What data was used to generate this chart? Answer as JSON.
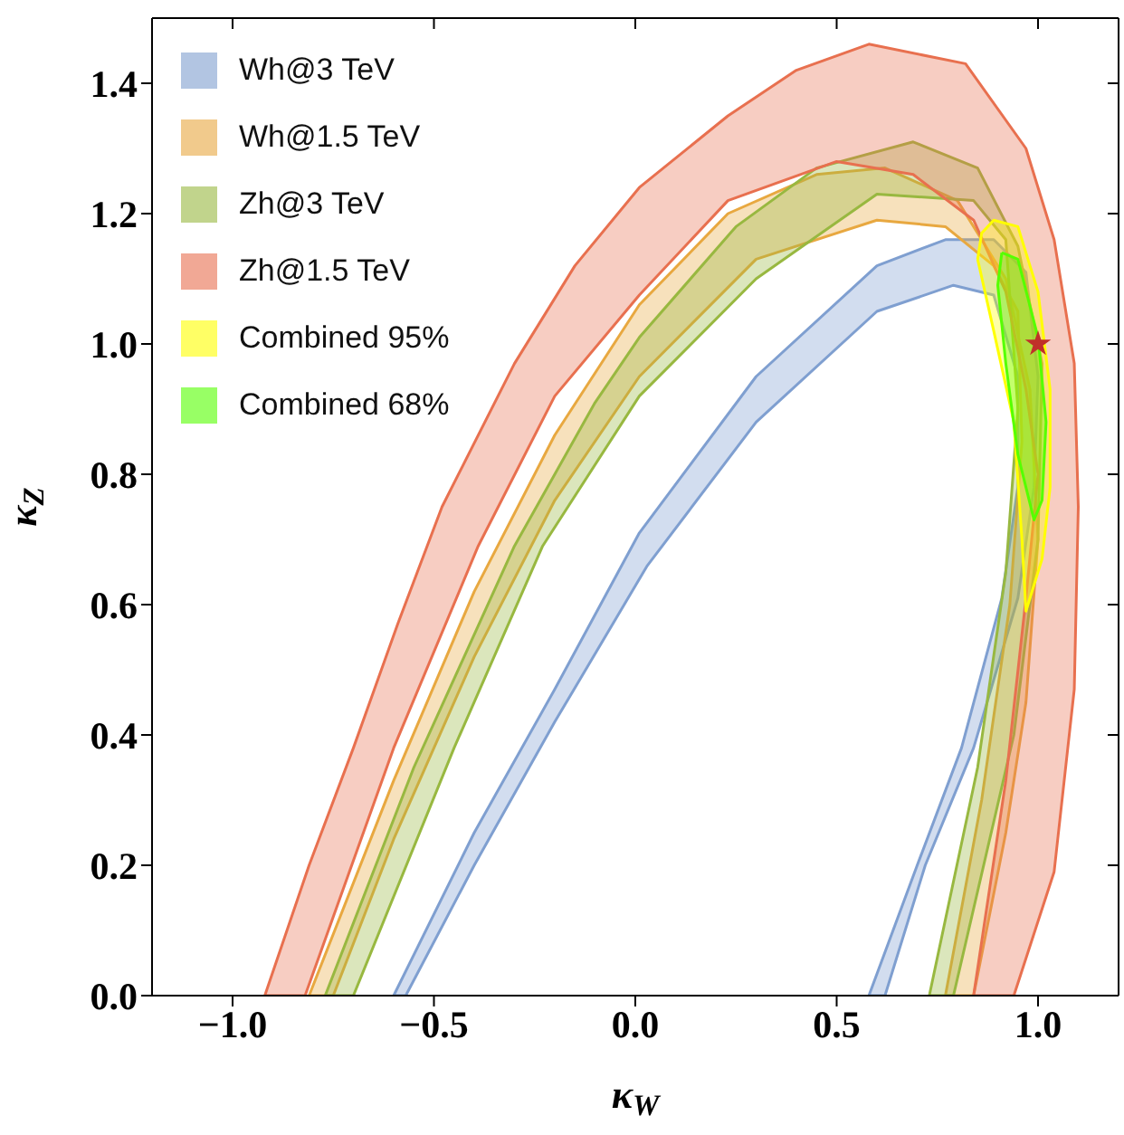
{
  "chart_data": {
    "type": "area",
    "xlabel": "κ$_{W}$",
    "ylabel": "κ$_{Z}$",
    "xlim": [
      -1.2,
      1.2
    ],
    "ylim": [
      0,
      1.5
    ],
    "xticks": [
      {
        "value": -1,
        "label": "−1.0"
      },
      {
        "value": -0.5,
        "label": "−0.5"
      },
      {
        "value": 0,
        "label": "0.0"
      },
      {
        "value": 0.5,
        "label": "0.5"
      },
      {
        "value": 1,
        "label": "1.0"
      }
    ],
    "yticks": [
      {
        "value": 0,
        "label": "0.0"
      },
      {
        "value": 0.2,
        "label": "0.2"
      },
      {
        "value": 0.4,
        "label": "0.4"
      },
      {
        "value": 0.6,
        "label": "0.6"
      },
      {
        "value": 0.8,
        "label": "0.8"
      },
      {
        "value": 1,
        "label": "1.0"
      },
      {
        "value": 1.2,
        "label": "1.2"
      },
      {
        "value": 1.4,
        "label": "1.4"
      }
    ],
    "legend": "top left",
    "series": [
      {
        "name": "Wh@3 TeV",
        "color": "#7f9fd0",
        "x": [
          -0.6,
          -0.4,
          -0.2,
          0.01,
          0.3,
          0.6,
          0.77,
          0.89,
          0.97,
          1.0,
          0.99,
          0.95,
          0.84,
          0.72,
          0.62,
          0.58,
          0.7,
          0.81,
          0.91,
          0.95,
          0.95,
          0.89,
          0.79,
          0.6,
          0.3,
          0.03,
          -0.2,
          -0.4,
          -0.57,
          -0.6
        ],
        "values": [
          0,
          0.25,
          0.47,
          0.71,
          0.95,
          1.12,
          1.16,
          1.16,
          1.11,
          0.95,
          0.78,
          0.61,
          0.38,
          0.2,
          0,
          0,
          0.2,
          0.38,
          0.61,
          0.78,
          0.95,
          1.075,
          1.09,
          1.05,
          0.88,
          0.66,
          0.42,
          0.2,
          0,
          0
        ]
      },
      {
        "name": "Wh@1.5 TeV",
        "color": "#e8a840",
        "x": [
          -0.81,
          -0.6,
          -0.4,
          -0.2,
          0.01,
          0.23,
          0.45,
          0.62,
          0.8,
          0.92,
          0.98,
          1.0,
          0.97,
          0.92,
          0.84,
          0.77,
          0.86,
          0.93,
          0.96,
          0.95,
          0.89,
          0.77,
          0.6,
          0.3,
          0.01,
          -0.2,
          -0.4,
          -0.6,
          -0.75,
          -0.81
        ],
        "values": [
          0,
          0.33,
          0.62,
          0.86,
          1.06,
          1.2,
          1.26,
          1.27,
          1.22,
          1.1,
          0.93,
          0.7,
          0.45,
          0.25,
          0,
          0,
          0.3,
          0.6,
          0.85,
          1.05,
          1.12,
          1.18,
          1.19,
          1.13,
          0.95,
          0.76,
          0.52,
          0.24,
          0,
          0
        ]
      },
      {
        "name": "Zh@3 TeV",
        "color": "#98b840",
        "x": [
          -0.77,
          -0.55,
          -0.3,
          -0.1,
          0.01,
          0.25,
          0.45,
          0.69,
          0.85,
          0.95,
          1.01,
          1.0,
          0.94,
          0.79,
          0.73,
          0.85,
          0.92,
          0.95,
          0.92,
          0.84,
          0.6,
          0.3,
          0.01,
          -0.23,
          -0.45,
          -0.7,
          -0.77
        ],
        "values": [
          0,
          0.35,
          0.69,
          0.91,
          1.01,
          1.18,
          1.27,
          1.31,
          1.27,
          1.15,
          0.97,
          0.7,
          0.4,
          0,
          0,
          0.35,
          0.65,
          0.9,
          1.16,
          1.22,
          1.23,
          1.1,
          0.92,
          0.69,
          0.38,
          0,
          0
        ]
      },
      {
        "name": "Zh@1.5 TeV",
        "color": "#e8704f",
        "x": [
          -0.92,
          -0.81,
          -0.7,
          -0.59,
          -0.48,
          -0.3,
          -0.15,
          0.01,
          0.23,
          0.4,
          0.58,
          0.82,
          0.97,
          1.04,
          1.09,
          1.1,
          1.09,
          1.04,
          0.94,
          0.84,
          0.92,
          0.97,
          1.0,
          0.97,
          0.92,
          0.84,
          0.69,
          0.5,
          0.23,
          0.01,
          -0.2,
          -0.39,
          -0.6,
          -0.82,
          -0.92
        ],
        "values": [
          0,
          0.2,
          0.38,
          0.57,
          0.75,
          0.97,
          1.12,
          1.24,
          1.35,
          1.42,
          1.46,
          1.43,
          1.3,
          1.16,
          0.97,
          0.75,
          0.47,
          0.19,
          0,
          0,
          0.33,
          0.61,
          0.8,
          0.93,
          1.08,
          1.19,
          1.26,
          1.28,
          1.22,
          1.075,
          0.92,
          0.69,
          0.38,
          0,
          0
        ]
      },
      {
        "name": "Combined 95%",
        "color": "#ffff00",
        "x": [
          0.85,
          0.86,
          0.89,
          0.95,
          1.0,
          1.03,
          1.03,
          1.01,
          0.97,
          0.96,
          0.94,
          0.89,
          0.85
        ],
        "values": [
          1.13,
          1.17,
          1.19,
          1.18,
          1.08,
          0.93,
          0.78,
          0.67,
          0.59,
          0.7,
          0.88,
          1.02,
          1.13
        ]
      },
      {
        "name": "Combined 68%",
        "color": "#55ff00",
        "x": [
          0.91,
          0.95,
          1.0,
          1.02,
          1.01,
          0.99,
          0.95,
          0.92,
          0.9,
          0.91
        ],
        "values": [
          1.14,
          1.13,
          1.01,
          0.88,
          0.76,
          0.73,
          0.83,
          0.97,
          1.09,
          1.14
        ]
      },
      {
        "type": "scatter",
        "color": "#c0302a",
        "marker": "star",
        "x": [
          1
        ],
        "values": [
          1
        ]
      }
    ]
  }
}
